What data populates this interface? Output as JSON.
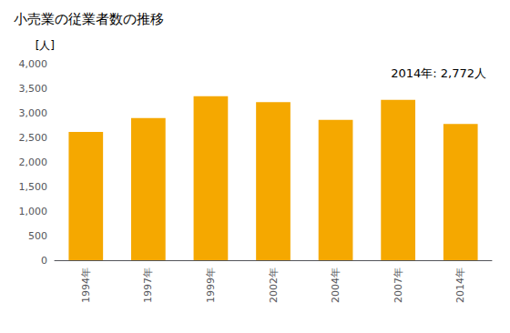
{
  "chart_data": {
    "type": "bar",
    "title": "小売業の従業者数の推移",
    "ylabel": "[人]",
    "annotation": "2014年: 2,772人",
    "categories": [
      "1994年",
      "1997年",
      "1999年",
      "2002年",
      "2004年",
      "2007年",
      "2014年"
    ],
    "values": [
      2609,
      2893,
      3340,
      3219,
      2856,
      3263,
      2772
    ],
    "color": "#F5A800",
    "ylim": [
      0,
      4000
    ],
    "yticks": [
      0,
      500,
      {
        "value": 1000,
        "label": "1,000"
      },
      {
        "value": 1500,
        "label": "1,500"
      },
      {
        "value": 2000,
        "label": "2,000"
      },
      {
        "value": 2500,
        "label": "2,500"
      },
      {
        "value": 3000,
        "label": "3,000"
      },
      {
        "value": 3500,
        "label": "3,500"
      },
      {
        "value": 4000,
        "label": "4,000"
      }
    ],
    "grid": false
  }
}
